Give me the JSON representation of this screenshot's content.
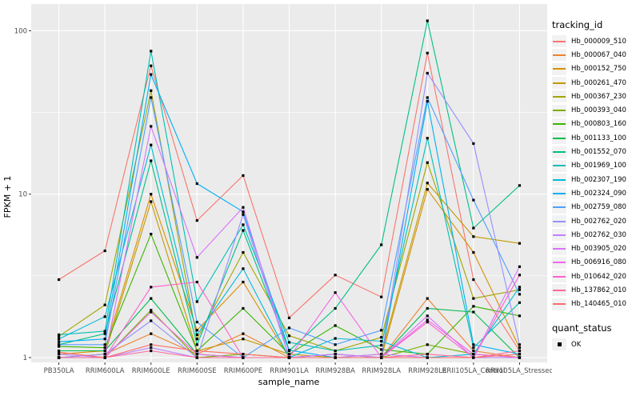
{
  "chart_data": {
    "type": "line",
    "title": "",
    "xlabel": "sample_name",
    "ylabel": "FPKM + 1",
    "yscale": "log10",
    "ylim": [
      0.93,
      145
    ],
    "yticks": [
      1,
      10,
      100
    ],
    "minor_yticks": [
      3.1623,
      31.623
    ],
    "grid": "white major+minor on gray panel",
    "panel_background": "#EBEBEB",
    "grid_color": "#FFFFFF",
    "axis_text_color": "#4D4D4D",
    "point_marker": "filled-square",
    "point_color": "#000000",
    "legend_title": "tracking_id",
    "point_legend": {
      "title": "quant_status",
      "label": "OK"
    },
    "x_categories": [
      "PB350LA",
      "RRIM600LA",
      "RRIM600LE",
      "RRIM600SE",
      "RRIM600PE",
      "RRIM901LA",
      "RRIM928BA",
      "RRIM928LA",
      "RRIM928LE",
      "RRII105LA_Control",
      "RRII105LA_Stressed"
    ],
    "series": [
      {
        "name": "Hb_000009_510",
        "color": "#F8766D",
        "values": [
          3.0,
          4.5,
          61,
          6.9,
          13,
          1.75,
          3.2,
          2.35,
          73,
          3.0,
          1.1
        ]
      },
      {
        "name": "Hb_000067_040",
        "color": "#EA8331",
        "values": [
          1.0,
          1.05,
          1.4,
          1.05,
          1.4,
          1.0,
          1.0,
          1.0,
          2.3,
          1.1,
          1.0
        ]
      },
      {
        "name": "Hb_000152_750",
        "color": "#D89000",
        "values": [
          1.05,
          1.1,
          10,
          1.47,
          2.9,
          1.0,
          1.05,
          1.0,
          10.7,
          4.4,
          1.15
        ]
      },
      {
        "name": "Hb_000261_470",
        "color": "#C09B00",
        "values": [
          1.0,
          1.05,
          9.0,
          1.1,
          1.3,
          1.05,
          1.0,
          1.05,
          11.7,
          5.5,
          5.0
        ]
      },
      {
        "name": "Hb_000367_230",
        "color": "#A3A500",
        "values": [
          1.35,
          2.1,
          43,
          1.3,
          4.4,
          1.36,
          1.1,
          1.33,
          15.6,
          2.3,
          2.6
        ]
      },
      {
        "name": "Hb_000393_040",
        "color": "#7CAE00",
        "values": [
          1.0,
          1.0,
          1.95,
          1.0,
          1.05,
          1.0,
          1.0,
          1.0,
          1.2,
          1.05,
          1.0
        ]
      },
      {
        "name": "Hb_000803_160",
        "color": "#39B600",
        "values": [
          1.17,
          1.15,
          5.7,
          1.1,
          2.0,
          1.05,
          1.57,
          1.12,
          1.05,
          2.06,
          1.8
        ]
      },
      {
        "name": "Hb_001133_100",
        "color": "#00BB4E",
        "values": [
          1.1,
          1.1,
          2.3,
          1.05,
          1.0,
          1.0,
          1.05,
          1.0,
          2.0,
          1.9,
          1.0
        ]
      },
      {
        "name": "Hb_001552_070",
        "color": "#00C087",
        "values": [
          1.2,
          1.4,
          16,
          1.2,
          6.0,
          1.1,
          2.0,
          4.9,
          115,
          6.2,
          11.3
        ]
      },
      {
        "name": "Hb_001969_100",
        "color": "#00C0B4",
        "values": [
          1.38,
          1.45,
          75,
          2.2,
          6.5,
          1.24,
          1.1,
          1.19,
          22,
          1.15,
          2.17
        ]
      },
      {
        "name": "Hb_002307_190",
        "color": "#00BCD8",
        "values": [
          1.3,
          1.78,
          20,
          1.38,
          3.5,
          1.0,
          1.31,
          1.26,
          1.0,
          1.05,
          2.7
        ]
      },
      {
        "name": "Hb_002324_090",
        "color": "#00B0F6",
        "values": [
          1.25,
          1.3,
          54,
          11.6,
          7.8,
          1.11,
          1.0,
          1.0,
          37,
          1.2,
          1.05
        ]
      },
      {
        "name": "Hb_002759_080",
        "color": "#529EFF",
        "values": [
          1.2,
          1.2,
          39,
          1.65,
          1.0,
          1.52,
          1.2,
          1.47,
          39,
          9.2,
          2.44
        ]
      },
      {
        "name": "Hb_002762_020",
        "color": "#9590FF",
        "values": [
          1.0,
          1.05,
          1.68,
          1.0,
          7.5,
          1.0,
          1.05,
          1.0,
          55,
          20.4,
          1.2
        ]
      },
      {
        "name": "Hb_002762_030",
        "color": "#BE80FF",
        "values": [
          1.05,
          1.0,
          1.15,
          1.0,
          1.0,
          1.0,
          1.0,
          1.05,
          1.0,
          1.0,
          1.0
        ]
      },
      {
        "name": "Hb_003905_020",
        "color": "#D874FD",
        "values": [
          1.0,
          1.0,
          26,
          4.1,
          8.3,
          1.0,
          1.05,
          1.0,
          1.8,
          1.0,
          3.6
        ]
      },
      {
        "name": "Hb_006916_080",
        "color": "#F066EA",
        "values": [
          1.0,
          1.0,
          1.9,
          1.05,
          1.0,
          1.0,
          2.5,
          1.0,
          1.7,
          1.05,
          1.0
        ]
      },
      {
        "name": "Hb_010642_020",
        "color": "#FF61CC",
        "values": [
          1.0,
          1.0,
          2.7,
          2.9,
          1.0,
          1.0,
          1.0,
          1.0,
          1.65,
          1.0,
          3.2
        ]
      },
      {
        "name": "Hb_137862_010",
        "color": "#FF689F",
        "values": [
          1.0,
          1.0,
          1.1,
          1.0,
          1.0,
          1.0,
          1.0,
          1.0,
          1.05,
          1.0,
          1.1
        ]
      },
      {
        "name": "Hb_140465_010",
        "color": "#FF6C67",
        "values": [
          1.08,
          1.0,
          1.2,
          1.1,
          1.05,
          1.0,
          1.0,
          1.0,
          1.0,
          1.0,
          1.05
        ]
      }
    ],
    "legend_position": "right"
  }
}
